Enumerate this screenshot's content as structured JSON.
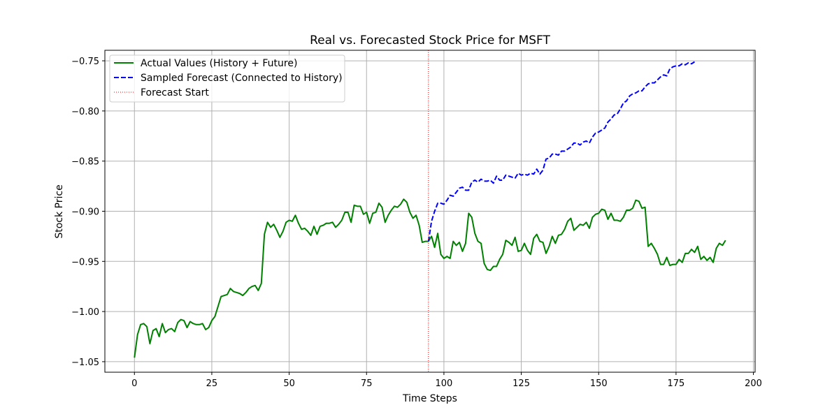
{
  "chart_data": {
    "type": "line",
    "title": "Real vs. Forecasted Stock Price for MSFT",
    "xlabel": "Time Steps",
    "ylabel": "Stock Price",
    "xlim": [
      -9.55,
      200.55
    ],
    "ylim": [
      -1.0605,
      -0.7395
    ],
    "xticks": [
      0,
      25,
      50,
      75,
      100,
      125,
      150,
      175,
      200
    ],
    "xtick_labels": [
      "0",
      "25",
      "50",
      "75",
      "100",
      "125",
      "150",
      "175",
      "200"
    ],
    "yticks": [
      -1.05,
      -1.0,
      -0.95,
      -0.9,
      -0.85,
      -0.8,
      -0.75
    ],
    "ytick_labels": [
      "−1.05",
      "−1.00",
      "−0.95",
      "−0.90",
      "−0.85",
      "−0.80",
      "−0.75"
    ],
    "grid": true,
    "legend_position": "top-left",
    "forecast_start_x": 95,
    "series": [
      {
        "name": "Actual Values (History + Future)",
        "style": "solid",
        "color": "#008000",
        "x_start": 0,
        "values": [
          -1.046,
          -1.023,
          -1.013,
          -1.012,
          -1.015,
          -1.032,
          -1.019,
          -1.017,
          -1.025,
          -1.012,
          -1.021,
          -1.018,
          -1.017,
          -1.02,
          -1.011,
          -1.008,
          -1.009,
          -1.016,
          -1.01,
          -1.012,
          -1.013,
          -1.013,
          -1.012,
          -1.018,
          -1.016,
          -1.009,
          -1.005,
          -0.995,
          -0.985,
          -0.984,
          -0.983,
          -0.977,
          -0.98,
          -0.981,
          -0.982,
          -0.984,
          -0.981,
          -0.977,
          -0.975,
          -0.974,
          -0.979,
          -0.972,
          -0.923,
          -0.911,
          -0.916,
          -0.913,
          -0.919,
          -0.926,
          -0.92,
          -0.911,
          -0.909,
          -0.91,
          -0.904,
          -0.912,
          -0.918,
          -0.917,
          -0.92,
          -0.924,
          -0.915,
          -0.923,
          -0.915,
          -0.914,
          -0.912,
          -0.912,
          -0.911,
          -0.916,
          -0.913,
          -0.909,
          -0.901,
          -0.901,
          -0.911,
          -0.894,
          -0.895,
          -0.895,
          -0.903,
          -0.901,
          -0.912,
          -0.902,
          -0.901,
          -0.892,
          -0.896,
          -0.911,
          -0.904,
          -0.899,
          -0.895,
          -0.896,
          -0.893,
          -0.888,
          -0.891,
          -0.901,
          -0.907,
          -0.904,
          -0.914,
          -0.931,
          -0.93,
          -0.93,
          -0.925,
          -0.936,
          -0.922,
          -0.943,
          -0.947,
          -0.945,
          -0.947,
          -0.93,
          -0.934,
          -0.931,
          -0.94,
          -0.932,
          -0.902,
          -0.906,
          -0.922,
          -0.93,
          -0.932,
          -0.952,
          -0.958,
          -0.959,
          -0.955,
          -0.955,
          -0.948,
          -0.943,
          -0.929,
          -0.931,
          -0.934,
          -0.926,
          -0.94,
          -0.939,
          -0.932,
          -0.939,
          -0.943,
          -0.927,
          -0.923,
          -0.93,
          -0.931,
          -0.942,
          -0.935,
          -0.925,
          -0.932,
          -0.924,
          -0.923,
          -0.918,
          -0.91,
          -0.907,
          -0.919,
          -0.916,
          -0.913,
          -0.914,
          -0.911,
          -0.917,
          -0.906,
          -0.903,
          -0.902,
          -0.898,
          -0.899,
          -0.908,
          -0.902,
          -0.909,
          -0.909,
          -0.91,
          -0.906,
          -0.899,
          -0.899,
          -0.897,
          -0.889,
          -0.89,
          -0.897,
          -0.896,
          -0.935,
          -0.932,
          -0.937,
          -0.943,
          -0.953,
          -0.953,
          -0.946,
          -0.954,
          -0.953,
          -0.953,
          -0.948,
          -0.951,
          -0.942,
          -0.942,
          -0.938,
          -0.941,
          -0.935,
          -0.948,
          -0.945,
          -0.949,
          -0.946,
          -0.951,
          -0.937,
          -0.932,
          -0.934,
          -0.929
        ]
      },
      {
        "name": "Sampled Forecast (Connected to History)",
        "style": "dashed",
        "color": "#0000ff",
        "x_start": 95,
        "values": [
          -0.93,
          -0.91,
          -0.9,
          -0.892,
          -0.892,
          -0.893,
          -0.889,
          -0.884,
          -0.885,
          -0.881,
          -0.877,
          -0.876,
          -0.879,
          -0.879,
          -0.871,
          -0.869,
          -0.871,
          -0.868,
          -0.87,
          -0.87,
          -0.869,
          -0.872,
          -0.865,
          -0.869,
          -0.869,
          -0.864,
          -0.865,
          -0.866,
          -0.867,
          -0.862,
          -0.864,
          -0.863,
          -0.864,
          -0.862,
          -0.863,
          -0.858,
          -0.863,
          -0.859,
          -0.848,
          -0.847,
          -0.843,
          -0.843,
          -0.844,
          -0.84,
          -0.84,
          -0.838,
          -0.836,
          -0.832,
          -0.832,
          -0.834,
          -0.831,
          -0.83,
          -0.832,
          -0.826,
          -0.822,
          -0.821,
          -0.819,
          -0.817,
          -0.811,
          -0.808,
          -0.804,
          -0.803,
          -0.798,
          -0.792,
          -0.79,
          -0.785,
          -0.783,
          -0.782,
          -0.78,
          -0.78,
          -0.776,
          -0.773,
          -0.772,
          -0.772,
          -0.769,
          -0.766,
          -0.764,
          -0.765,
          -0.758,
          -0.756,
          -0.755,
          -0.755,
          -0.753,
          -0.754,
          -0.752,
          -0.753,
          -0.751
        ]
      }
    ]
  },
  "legend": {
    "items": [
      {
        "label": "Actual Values (History + Future)"
      },
      {
        "label": "Sampled Forecast (Connected to History)"
      },
      {
        "label": "Forecast Start"
      }
    ]
  },
  "colors": {
    "actual": "#008000",
    "forecast": "#0000ff",
    "forecast_start": "#ff0000",
    "grid": "#b0b0b0"
  }
}
